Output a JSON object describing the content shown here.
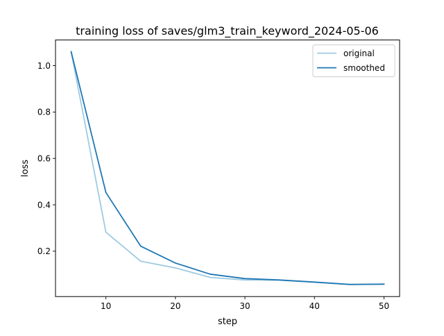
{
  "chart_data": {
    "type": "line",
    "title": "training loss of saves/glm3_train_keyword_2024-05-06",
    "xlabel": "step",
    "ylabel": "loss",
    "xlim": [
      2.75,
      52.25
    ],
    "ylim": [
      0.0045,
      1.1105
    ],
    "xticks": [
      10,
      20,
      30,
      40,
      50
    ],
    "yticks": [
      0.2,
      0.4,
      0.6,
      0.8,
      1.0
    ],
    "xtick_labels": [
      "10",
      "20",
      "30",
      "40",
      "50"
    ],
    "ytick_labels": [
      "0.2",
      "0.4",
      "0.6",
      "0.8",
      "1.0"
    ],
    "grid": false,
    "legend_position": "top-right",
    "x": [
      5,
      10,
      15,
      20,
      25,
      30,
      35,
      40,
      45,
      50
    ],
    "series": [
      {
        "name": "original",
        "color": "#9ecae1",
        "values": [
          1.06,
          0.282,
          0.157,
          0.128,
          0.087,
          0.076,
          0.075,
          0.066,
          0.056,
          0.058
        ]
      },
      {
        "name": "smoothed",
        "color": "#1f77b4",
        "values": [
          1.06,
          0.453,
          0.222,
          0.149,
          0.101,
          0.082,
          0.076,
          0.067,
          0.057,
          0.058
        ]
      }
    ]
  }
}
